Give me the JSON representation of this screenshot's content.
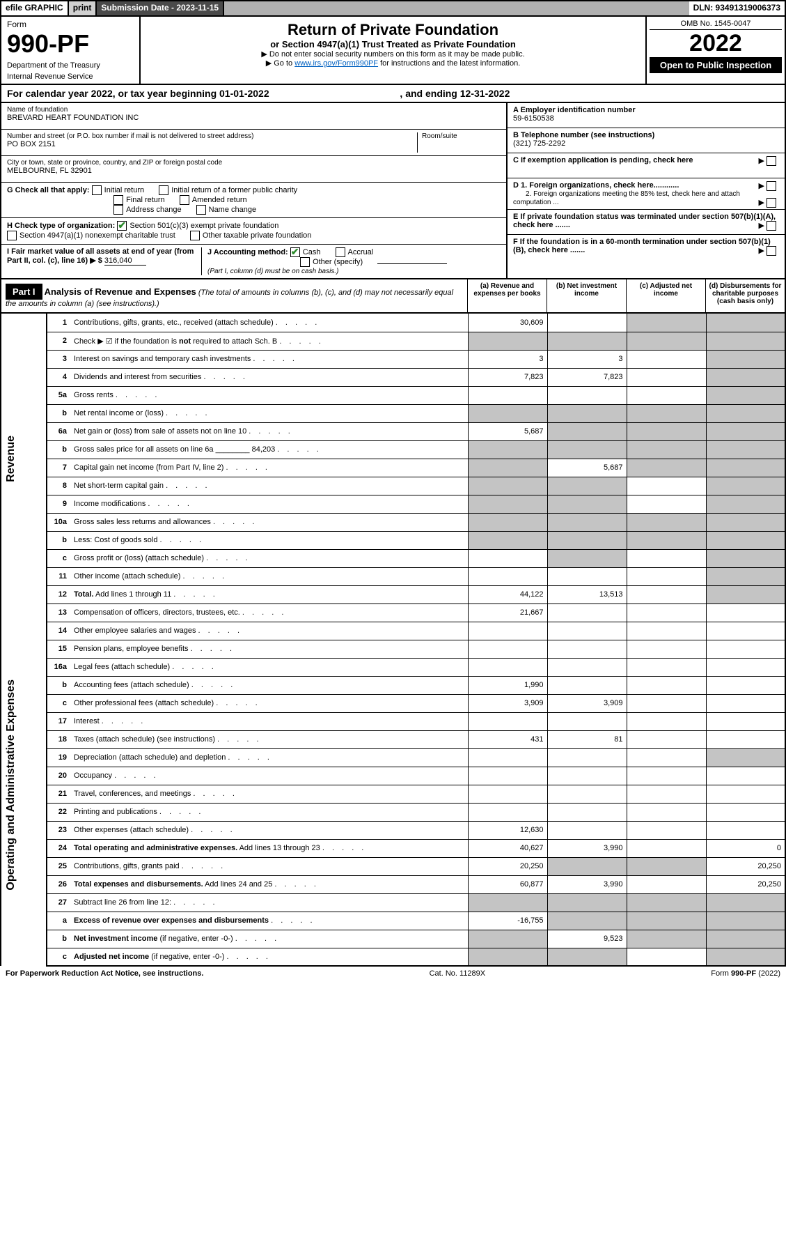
{
  "colors": {
    "link": "#0060c0",
    "check_green": "#2a8a2a",
    "shade": "#c4c4c4",
    "topbar_grey": "#b0b0b0",
    "darkgrey": "#4a4a4a"
  },
  "topbar": {
    "efile": "efile GRAPHIC",
    "print": "print",
    "submission_label": "Submission Date - 2023-11-15",
    "dln": "DLN: 93491319006373"
  },
  "form": {
    "prefix": "Form",
    "number": "990-PF",
    "dept1": "Department of the Treasury",
    "dept2": "Internal Revenue Service",
    "title": "Return of Private Foundation",
    "subtitle": "or Section 4947(a)(1) Trust Treated as Private Foundation",
    "note1": "▶ Do not enter social security numbers on this form as it may be made public.",
    "note2a": "▶ Go to ",
    "note2_link": "www.irs.gov/Form990PF",
    "note2b": " for instructions and the latest information.",
    "omb": "OMB No. 1545-0047",
    "year": "2022",
    "open": "Open to Public Inspection"
  },
  "calendar": {
    "prefix": "For calendar year 2022, or tax year beginning ",
    "begin": "01-01-2022",
    "mid": ", and ending ",
    "end": "12-31-2022"
  },
  "entity": {
    "name_label": "Name of foundation",
    "name": "BREVARD HEART FOUNDATION INC",
    "addr_label": "Number and street (or P.O. box number if mail is not delivered to street address)",
    "room_label": "Room/suite",
    "addr": "PO BOX 2151",
    "city_label": "City or town, state or province, country, and ZIP or foreign postal code",
    "city": "MELBOURNE, FL  32901",
    "ein_label": "A Employer identification number",
    "ein": "59-6150538",
    "phone_label": "B Telephone number (see instructions)",
    "phone": "(321) 725-2292",
    "c_label": "C If exemption application is pending, check here",
    "d1": "D 1. Foreign organizations, check here............",
    "d2": "2. Foreign organizations meeting the 85% test, check here and attach computation ...",
    "e": "E  If private foundation status was terminated under section 507(b)(1)(A), check here .......",
    "f": "F  If the foundation is in a 60-month termination under section 507(b)(1)(B), check here .......",
    "g_label": "G Check all that apply:",
    "g_opt1": "Initial return",
    "g_opt2": "Final return",
    "g_opt3": "Address change",
    "g_opt4": "Initial return of a former public charity",
    "g_opt5": "Amended return",
    "g_opt6": "Name change",
    "h_label": "H Check type of organization:",
    "h_opt1": "Section 501(c)(3) exempt private foundation",
    "h_opt2": "Section 4947(a)(1) nonexempt charitable trust",
    "h_opt3": "Other taxable private foundation",
    "i_label": "I Fair market value of all assets at end of year (from Part II, col. (c), line 16) ▶ $",
    "i_value": "316,040",
    "j_label": "J Accounting method:",
    "j_opt1": "Cash",
    "j_opt2": "Accrual",
    "j_opt3": "Other (specify)",
    "j_note": "(Part I, column (d) must be on cash basis.)"
  },
  "part1": {
    "header": "Part I",
    "title": "Analysis of Revenue and Expenses",
    "title_note": " (The total of amounts in columns (b), (c), and (d) may not necessarily equal the amounts in column (a) (see instructions).)",
    "colA": "(a) Revenue and expenses per books",
    "colB": "(b) Net investment income",
    "colC": "(c) Adjusted net income",
    "colD": "(d) Disbursements for charitable purposes (cash basis only)"
  },
  "side_labels": {
    "revenue": "Revenue",
    "expenses": "Operating and Administrative Expenses"
  },
  "rows": [
    {
      "n": "1",
      "desc": "Contributions, gifts, grants, etc., received (attach schedule)",
      "a": "30,609",
      "b": "",
      "c": "shade",
      "d": "shade"
    },
    {
      "n": "2",
      "desc": "Check ▶ ☑ if the foundation is <b>not</b> required to attach Sch. B",
      "a": "shade",
      "b": "shade",
      "c": "shade",
      "d": "shade",
      "check": true
    },
    {
      "n": "3",
      "desc": "Interest on savings and temporary cash investments",
      "a": "3",
      "b": "3",
      "c": "",
      "d": "shade"
    },
    {
      "n": "4",
      "desc": "Dividends and interest from securities",
      "a": "7,823",
      "b": "7,823",
      "c": "",
      "d": "shade"
    },
    {
      "n": "5a",
      "desc": "Gross rents",
      "a": "",
      "b": "",
      "c": "",
      "d": "shade"
    },
    {
      "n": "b",
      "desc": "Net rental income or (loss)",
      "a": "shade",
      "b": "shade",
      "c": "shade",
      "d": "shade",
      "inset": true
    },
    {
      "n": "6a",
      "desc": "Net gain or (loss) from sale of assets not on line 10",
      "a": "5,687",
      "b": "shade",
      "c": "shade",
      "d": "shade"
    },
    {
      "n": "b",
      "desc": "Gross sales price for all assets on line 6a ________ 84,203",
      "a": "shade",
      "b": "shade",
      "c": "shade",
      "d": "shade",
      "inset": true
    },
    {
      "n": "7",
      "desc": "Capital gain net income (from Part IV, line 2)",
      "a": "shade",
      "b": "5,687",
      "c": "shade",
      "d": "shade"
    },
    {
      "n": "8",
      "desc": "Net short-term capital gain",
      "a": "shade",
      "b": "shade",
      "c": "",
      "d": "shade"
    },
    {
      "n": "9",
      "desc": "Income modifications",
      "a": "shade",
      "b": "shade",
      "c": "",
      "d": "shade"
    },
    {
      "n": "10a",
      "desc": "Gross sales less returns and allowances",
      "a": "shade",
      "b": "shade",
      "c": "shade",
      "d": "shade",
      "inset": true
    },
    {
      "n": "b",
      "desc": "Less: Cost of goods sold",
      "a": "shade",
      "b": "shade",
      "c": "shade",
      "d": "shade",
      "inset": true
    },
    {
      "n": "c",
      "desc": "Gross profit or (loss) (attach schedule)",
      "a": "",
      "b": "shade",
      "c": "",
      "d": "shade"
    },
    {
      "n": "11",
      "desc": "Other income (attach schedule)",
      "a": "",
      "b": "",
      "c": "",
      "d": "shade"
    },
    {
      "n": "12",
      "desc": "<b>Total.</b> Add lines 1 through 11",
      "a": "44,122",
      "b": "13,513",
      "c": "",
      "d": "shade"
    },
    {
      "n": "13",
      "desc": "Compensation of officers, directors, trustees, etc.",
      "a": "21,667",
      "b": "",
      "c": "",
      "d": ""
    },
    {
      "n": "14",
      "desc": "Other employee salaries and wages",
      "a": "",
      "b": "",
      "c": "",
      "d": ""
    },
    {
      "n": "15",
      "desc": "Pension plans, employee benefits",
      "a": "",
      "b": "",
      "c": "",
      "d": ""
    },
    {
      "n": "16a",
      "desc": "Legal fees (attach schedule)",
      "a": "",
      "b": "",
      "c": "",
      "d": ""
    },
    {
      "n": "b",
      "desc": "Accounting fees (attach schedule)",
      "a": "1,990",
      "b": "",
      "c": "",
      "d": ""
    },
    {
      "n": "c",
      "desc": "Other professional fees (attach schedule)",
      "a": "3,909",
      "b": "3,909",
      "c": "",
      "d": ""
    },
    {
      "n": "17",
      "desc": "Interest",
      "a": "",
      "b": "",
      "c": "",
      "d": ""
    },
    {
      "n": "18",
      "desc": "Taxes (attach schedule) (see instructions)",
      "a": "431",
      "b": "81",
      "c": "",
      "d": ""
    },
    {
      "n": "19",
      "desc": "Depreciation (attach schedule) and depletion",
      "a": "",
      "b": "",
      "c": "",
      "d": "shade"
    },
    {
      "n": "20",
      "desc": "Occupancy",
      "a": "",
      "b": "",
      "c": "",
      "d": ""
    },
    {
      "n": "21",
      "desc": "Travel, conferences, and meetings",
      "a": "",
      "b": "",
      "c": "",
      "d": ""
    },
    {
      "n": "22",
      "desc": "Printing and publications",
      "a": "",
      "b": "",
      "c": "",
      "d": ""
    },
    {
      "n": "23",
      "desc": "Other expenses (attach schedule)",
      "a": "12,630",
      "b": "",
      "c": "",
      "d": ""
    },
    {
      "n": "24",
      "desc": "<b>Total operating and administrative expenses.</b> Add lines 13 through 23",
      "a": "40,627",
      "b": "3,990",
      "c": "",
      "d": "0"
    },
    {
      "n": "25",
      "desc": "Contributions, gifts, grants paid",
      "a": "20,250",
      "b": "shade",
      "c": "shade",
      "d": "20,250"
    },
    {
      "n": "26",
      "desc": "<b>Total expenses and disbursements.</b> Add lines 24 and 25",
      "a": "60,877",
      "b": "3,990",
      "c": "",
      "d": "20,250"
    },
    {
      "n": "27",
      "desc": "Subtract line 26 from line 12:",
      "a": "shade",
      "b": "shade",
      "c": "shade",
      "d": "shade"
    },
    {
      "n": "a",
      "desc": "<b>Excess of revenue over expenses and disbursements</b>",
      "a": "-16,755",
      "b": "shade",
      "c": "shade",
      "d": "shade"
    },
    {
      "n": "b",
      "desc": "<b>Net investment income</b> (if negative, enter -0-)",
      "a": "shade",
      "b": "9,523",
      "c": "shade",
      "d": "shade"
    },
    {
      "n": "c",
      "desc": "<b>Adjusted net income</b> (if negative, enter -0-)",
      "a": "shade",
      "b": "shade",
      "c": "",
      "d": "shade"
    }
  ],
  "footer": {
    "left": "For Paperwork Reduction Act Notice, see instructions.",
    "mid": "Cat. No. 11289X",
    "right": "Form 990-PF (2022)"
  }
}
